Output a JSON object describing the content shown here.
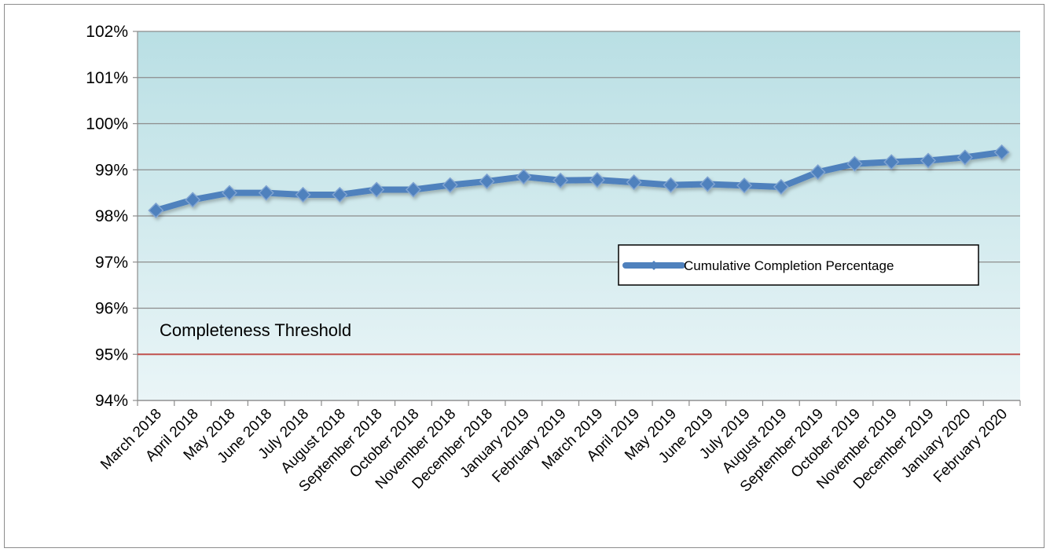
{
  "chart_data": {
    "type": "line",
    "categories": [
      "March 2018",
      "April 2018",
      "May 2018",
      "June 2018",
      "July 2018",
      "August 2018",
      "September 2018",
      "October 2018",
      "November 2018",
      "December 2018",
      "January 2019",
      "February 2019",
      "March 2019",
      "April 2019",
      "May 2019",
      "June 2019",
      "July 2019",
      "August 2019",
      "September 2019",
      "October 2019",
      "November 2019",
      "December 2019",
      "January 2020",
      "February 2020"
    ],
    "series": [
      {
        "name": "Cumulative Completion Percentage",
        "values": [
          98.12,
          98.35,
          98.5,
          98.5,
          98.46,
          98.46,
          98.57,
          98.57,
          98.67,
          98.75,
          98.85,
          98.77,
          98.78,
          98.73,
          98.67,
          98.69,
          98.66,
          98.63,
          98.95,
          99.13,
          99.17,
          99.2,
          99.27,
          99.38
        ],
        "color": "#4f81bd"
      }
    ],
    "threshold": {
      "label": "Completeness Threshold",
      "value": 95,
      "color": "#c0504d"
    },
    "ylim": [
      94,
      102
    ],
    "yticks": [
      "94%",
      "95%",
      "96%",
      "97%",
      "98%",
      "99%",
      "100%",
      "101%",
      "102%"
    ],
    "ytick_values": [
      94,
      95,
      96,
      97,
      98,
      99,
      100,
      101,
      102
    ],
    "grid": true,
    "legend_position": "center-right",
    "plot_background": [
      "#b9dfe4",
      "#eaf5f7"
    ]
  }
}
